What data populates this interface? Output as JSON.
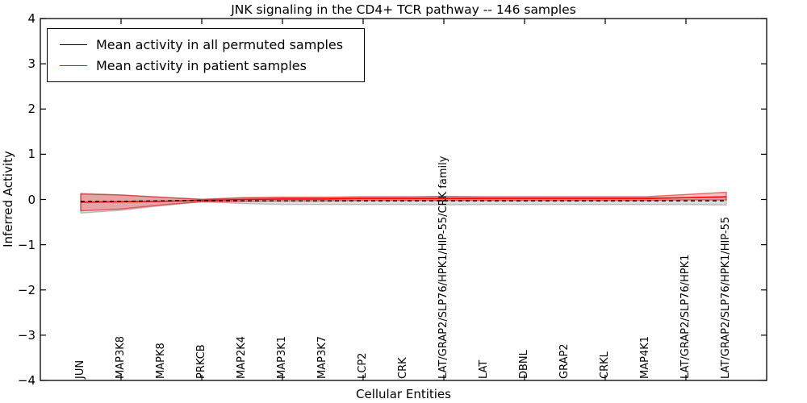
{
  "chart_data": {
    "type": "line",
    "title": "JNK signaling in the CD4+ TCR pathway -- 146 samples",
    "xlabel": "Cellular Entities",
    "ylabel": "Inferred Activity",
    "ylim": [
      -4,
      4
    ],
    "grid": false,
    "legend_position": "upper left",
    "y_ticks": [
      "4",
      "3",
      "2",
      "1",
      "0",
      "−1",
      "−2",
      "−3",
      "−4"
    ],
    "y_tick_values": [
      4,
      3,
      2,
      1,
      0,
      -1,
      -2,
      -3,
      -4
    ],
    "x_major_tick_indices": [
      1,
      3,
      5,
      7,
      9,
      11,
      13,
      15
    ],
    "categories": [
      "JUN",
      "MAP3K8",
      "MAPK8",
      "PRKCB",
      "MAP2K4",
      "MAP3K1",
      "MAP3K7",
      "LCP2",
      "CRK",
      "LAT/GRAP2/SLP76/HPK1/HIP-55/CRK family",
      "LAT",
      "DBNL",
      "GRAP2",
      "CRKL",
      "MAP4K1",
      "LAT/GRAP2/SLP76/HPK1",
      "LAT/GRAP2/SLP76/HPK1/HIP-55"
    ],
    "series": [
      {
        "name": "Mean activity in all permuted samples",
        "line_color": "#000000",
        "line_style": "dashed",
        "band_fill": "rgba(128,128,128,0.28)",
        "band_edge": "rgba(128,128,128,0.45)",
        "values": [
          -0.04,
          -0.04,
          -0.03,
          -0.02,
          -0.03,
          -0.03,
          -0.03,
          -0.03,
          -0.03,
          -0.03,
          -0.03,
          -0.03,
          -0.03,
          -0.03,
          -0.03,
          -0.03,
          -0.03
        ],
        "band_upper": [
          0.14,
          0.1,
          0.05,
          0.01,
          0.03,
          0.04,
          0.04,
          0.04,
          0.04,
          0.05,
          0.04,
          0.04,
          0.04,
          0.04,
          0.04,
          0.04,
          0.05
        ],
        "band_lower": [
          -0.3,
          -0.24,
          -0.14,
          -0.05,
          -0.09,
          -0.11,
          -0.11,
          -0.11,
          -0.11,
          -0.12,
          -0.11,
          -0.11,
          -0.11,
          -0.11,
          -0.11,
          -0.11,
          -0.12
        ]
      },
      {
        "name": "Mean activity in patient samples",
        "line_color": "#ff0000",
        "line_style": "solid",
        "band_fill": "rgba(255,0,0,0.25)",
        "band_edge": "rgba(220,0,0,0.55)",
        "values": [
          -0.06,
          -0.05,
          -0.04,
          -0.02,
          0.0,
          0.01,
          0.01,
          0.02,
          0.02,
          0.02,
          0.02,
          0.02,
          0.02,
          0.02,
          0.02,
          0.04,
          0.06
        ],
        "band_upper": [
          0.12,
          0.1,
          0.05,
          0.0,
          0.04,
          0.05,
          0.05,
          0.06,
          0.06,
          0.07,
          0.06,
          0.06,
          0.06,
          0.06,
          0.06,
          0.11,
          0.16
        ],
        "band_lower": [
          -0.25,
          -0.21,
          -0.12,
          -0.05,
          -0.04,
          -0.03,
          -0.03,
          -0.02,
          -0.02,
          -0.02,
          -0.02,
          -0.02,
          -0.02,
          -0.02,
          -0.02,
          -0.01,
          -0.01
        ]
      }
    ]
  },
  "axes": {
    "ylabel": "Inferred Activity",
    "xlabel": "Cellular Entities"
  },
  "legend": {
    "items": [
      {
        "label": "Mean activity in all permuted samples",
        "color": "#000000"
      },
      {
        "label": "Mean activity in patient samples",
        "color": "#ff0000"
      }
    ]
  }
}
